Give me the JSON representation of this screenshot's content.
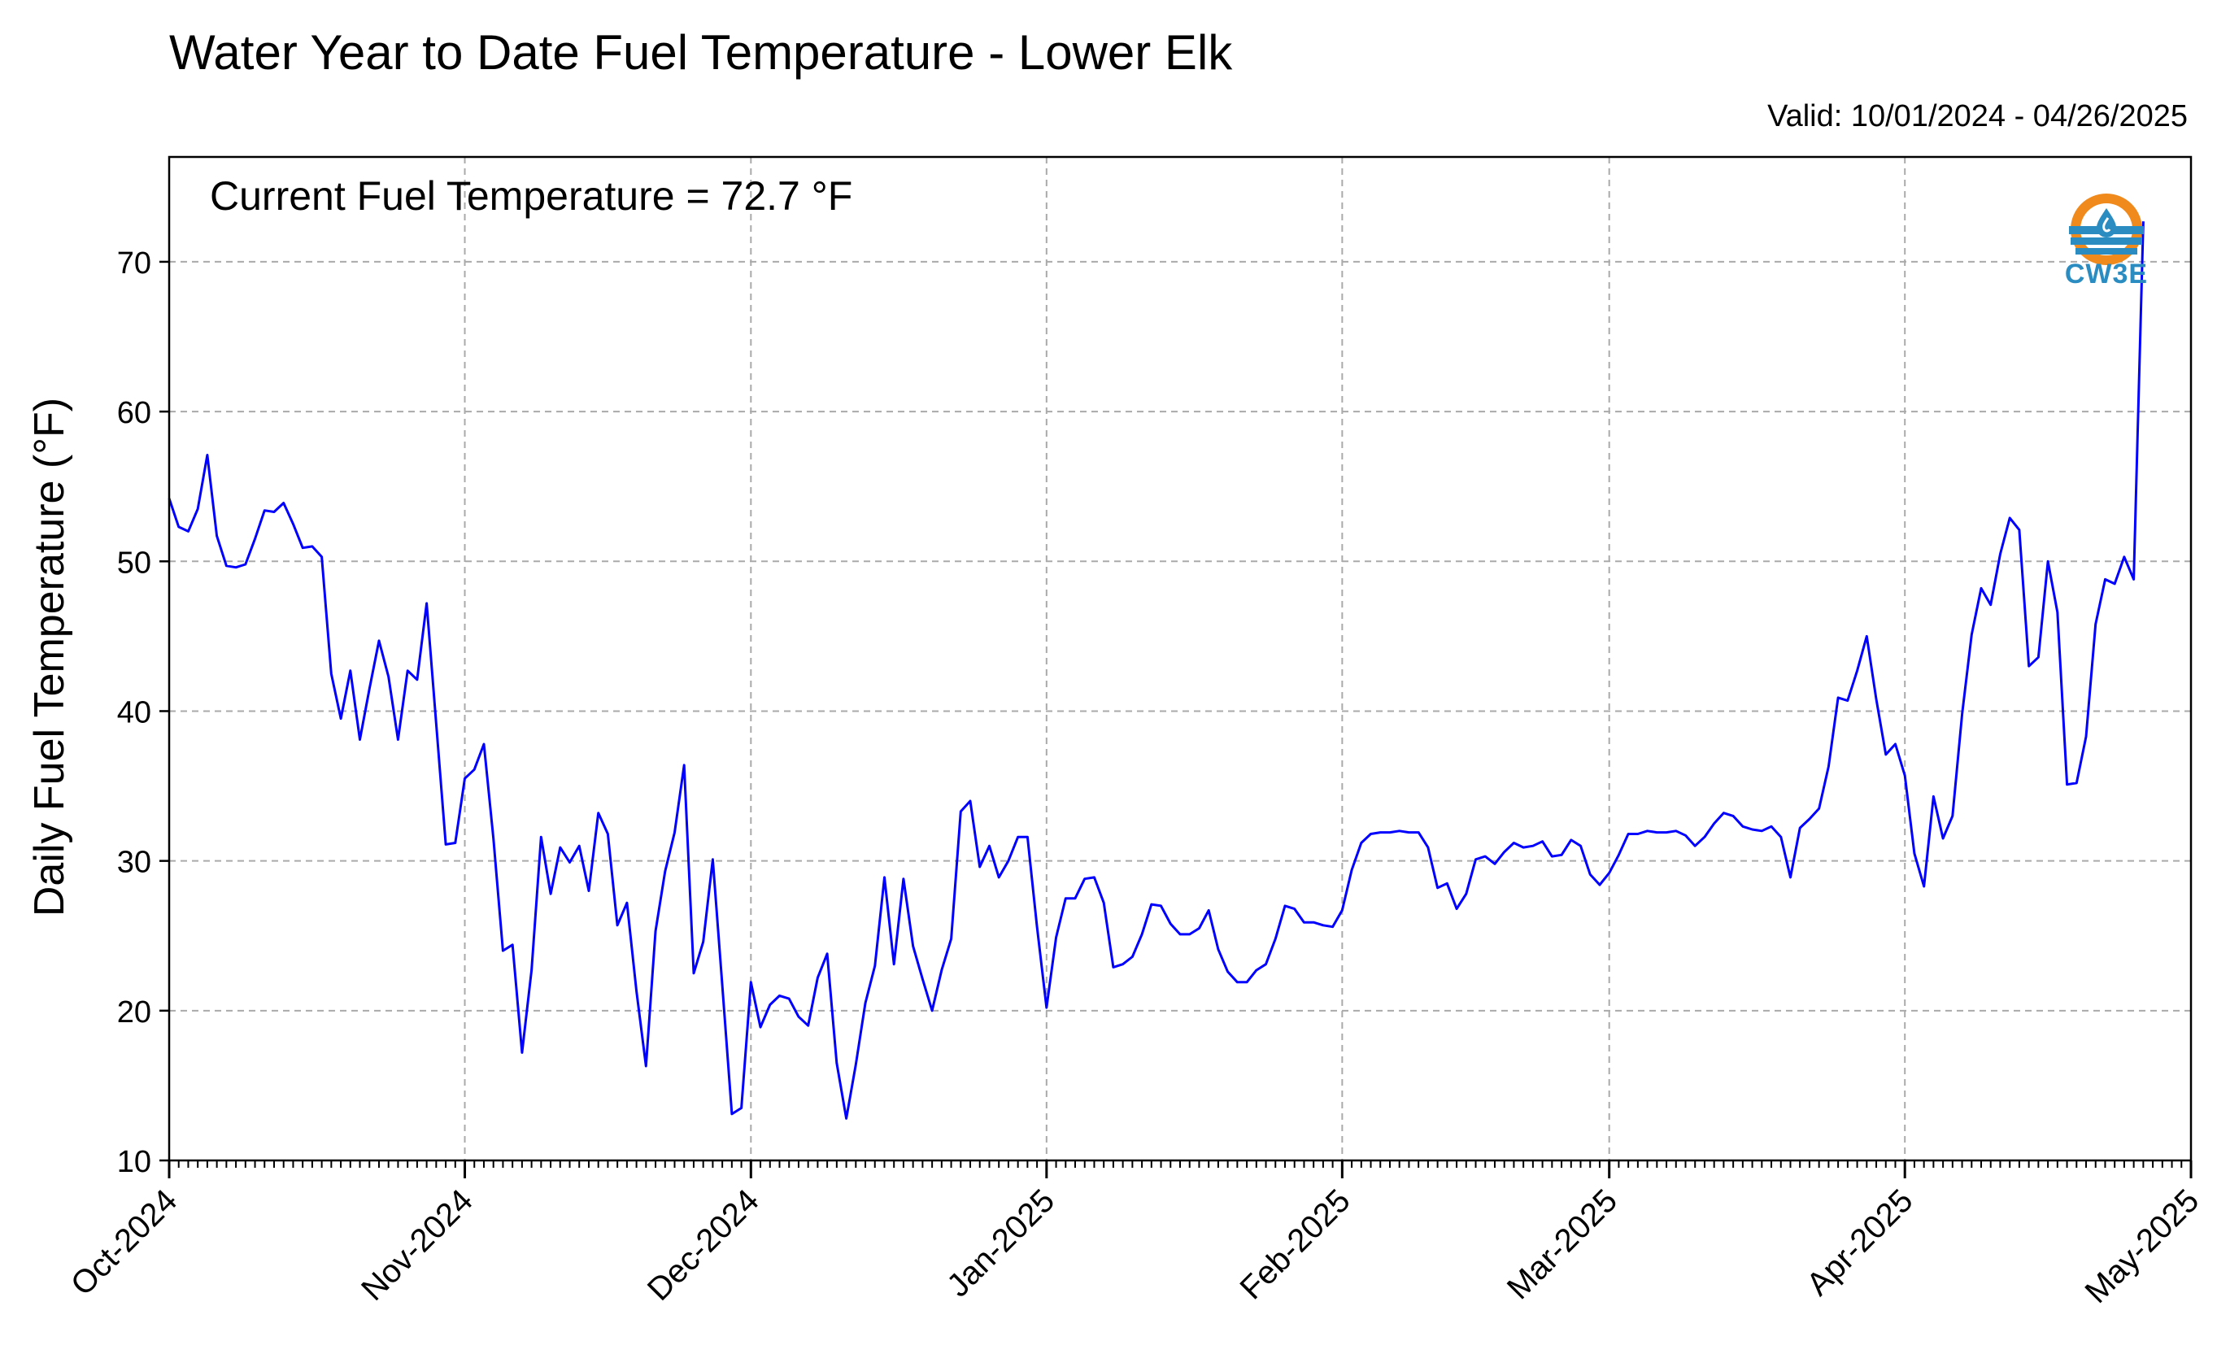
{
  "header": {
    "title": "Water Year to Date Fuel Temperature - Lower Elk",
    "valid": "Valid: 10/01/2024 - 04/26/2025"
  },
  "annotation": "Current Fuel Temperature = 72.7 °F",
  "logo": {
    "text": "CW3E",
    "icon": "cw3e-drop-icon",
    "colors": {
      "orange": "#f08a1c",
      "blue": "#2a8cc0"
    }
  },
  "chart_data": {
    "type": "line",
    "title": "Water Year to Date Fuel Temperature - Lower Elk",
    "xlabel": "",
    "ylabel": "Daily Fuel Temperature (°F)",
    "x_start": "2024-10-01",
    "x_step": "1 day",
    "xlim": [
      "2024-10-01",
      "2025-05-01"
    ],
    "ylim": [
      10,
      77
    ],
    "y_ticks": [
      10,
      20,
      30,
      40,
      50,
      60,
      70
    ],
    "x_ticks": [
      {
        "date": "2024-10-01",
        "label": "Oct-2024"
      },
      {
        "date": "2024-11-01",
        "label": "Nov-2024"
      },
      {
        "date": "2024-12-01",
        "label": "Dec-2024"
      },
      {
        "date": "2025-01-01",
        "label": "Jan-2025"
      },
      {
        "date": "2025-02-01",
        "label": "Feb-2025"
      },
      {
        "date": "2025-03-01",
        "label": "Mar-2025"
      },
      {
        "date": "2025-04-01",
        "label": "Apr-2025"
      },
      {
        "date": "2025-05-01",
        "label": "May-2025"
      }
    ],
    "grid": true,
    "line_color": "#0000ff",
    "series": [
      {
        "values": [
          54.2,
          52.3,
          52.0,
          53.5,
          57.1,
          51.7,
          49.7,
          49.6,
          49.8,
          51.5,
          53.4,
          53.3,
          53.9,
          52.5,
          50.9,
          51.0,
          50.3,
          42.5,
          39.5,
          42.7,
          38.1,
          41.5,
          44.7,
          42.3,
          38.1,
          42.7,
          42.1,
          47.2,
          39.2,
          31.1,
          31.2,
          35.5,
          36.1,
          37.8,
          31.5,
          24.0,
          24.4,
          17.2,
          22.7,
          31.6,
          27.8,
          30.9,
          29.9,
          31.0,
          28.0,
          33.2,
          31.8,
          25.7,
          27.2,
          21.3,
          16.3,
          25.3,
          29.3,
          31.9,
          36.4,
          22.5,
          24.6,
          30.1,
          21.7,
          13.1,
          13.5,
          21.9,
          18.9,
          20.4,
          21.0,
          20.8,
          19.6,
          19.0,
          22.2,
          23.8,
          16.5,
          12.8,
          16.4,
          20.5,
          23.0,
          28.9,
          23.1,
          28.8,
          24.3,
          22.1,
          20.0,
          22.7,
          24.8,
          33.3,
          34.0,
          29.6,
          31.0,
          28.9,
          30.0,
          31.6,
          31.6,
          25.6,
          20.2,
          24.9,
          27.5,
          27.5,
          28.8,
          28.9,
          27.2,
          22.9,
          23.1,
          23.6,
          25.1,
          27.1,
          27.0,
          25.8,
          25.1,
          25.1,
          25.5,
          26.7,
          24.1,
          22.6,
          21.9,
          21.9,
          22.7,
          23.1,
          24.8,
          27.0,
          26.8,
          25.9,
          25.9,
          25.7,
          25.6,
          26.7,
          29.4,
          31.2,
          31.8,
          31.9,
          31.9,
          32.0,
          31.9,
          31.9,
          30.9,
          28.2,
          28.5,
          26.8,
          27.8,
          30.1,
          30.3,
          29.8,
          30.6,
          31.2,
          30.9,
          31.0,
          31.3,
          30.3,
          30.4,
          31.4,
          31.0,
          29.1,
          28.4,
          29.2,
          30.4,
          31.8,
          31.8,
          32.0,
          31.9,
          31.9,
          32.0,
          31.7,
          31.0,
          31.6,
          32.5,
          33.2,
          33.0,
          32.3,
          32.1,
          32.0,
          32.3,
          31.6,
          28.9,
          32.2,
          32.8,
          33.5,
          36.3,
          40.9,
          40.7,
          42.7,
          45.0,
          40.8,
          37.1,
          37.8,
          35.7,
          30.5,
          28.3,
          34.3,
          31.5,
          33.0,
          39.8,
          45.1,
          48.2,
          47.1,
          50.5,
          52.9,
          52.1,
          43.0,
          43.6,
          50.0,
          46.6,
          35.1,
          35.2,
          38.3,
          45.8,
          48.8,
          48.5,
          50.3,
          48.8,
          72.7
        ]
      }
    ]
  }
}
